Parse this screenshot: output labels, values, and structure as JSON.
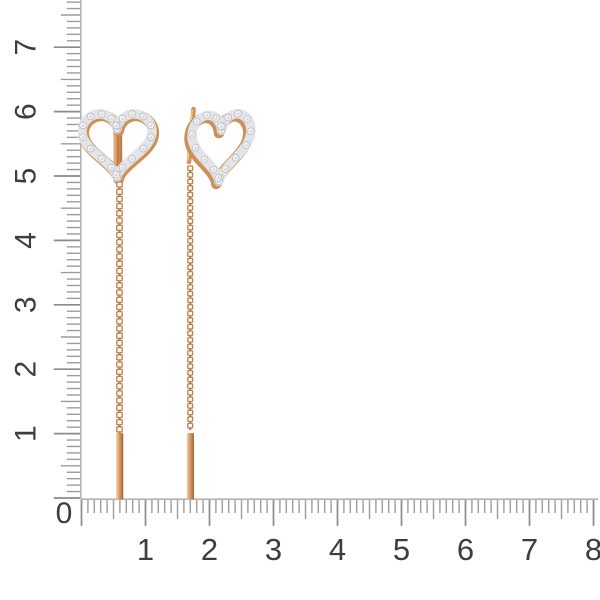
{
  "photo": {
    "background_color": "#ffffff"
  },
  "rulers": {
    "origin_label": "0",
    "vertical_labels": [
      "7",
      "6",
      "5",
      "4",
      "3",
      "2",
      "1"
    ],
    "horizontal_labels": [
      "1",
      "2",
      "3",
      "4",
      "5",
      "6",
      "7",
      "8"
    ],
    "colors": {
      "tick": "#9c9c9c",
      "major_tick": "#8a8a8a",
      "line": "#b3b3b3",
      "number": "#3d3d3d"
    }
  },
  "jewelry": {
    "colors": {
      "gold_light": "#f2cda6",
      "gold": "#d0915c",
      "gold_mid": "#c0834f",
      "gold_dark": "#a96838",
      "gold_rim": "#cf9057",
      "link": "#bd7f4c",
      "link_fill": "#fdf8f2",
      "diamond": "#f2f3f5",
      "diamond_shadow": "#b2b6bc",
      "facet": "#d6d9dd",
      "setting": "#e2e4e7",
      "sparkle": "#ffffff"
    }
  }
}
